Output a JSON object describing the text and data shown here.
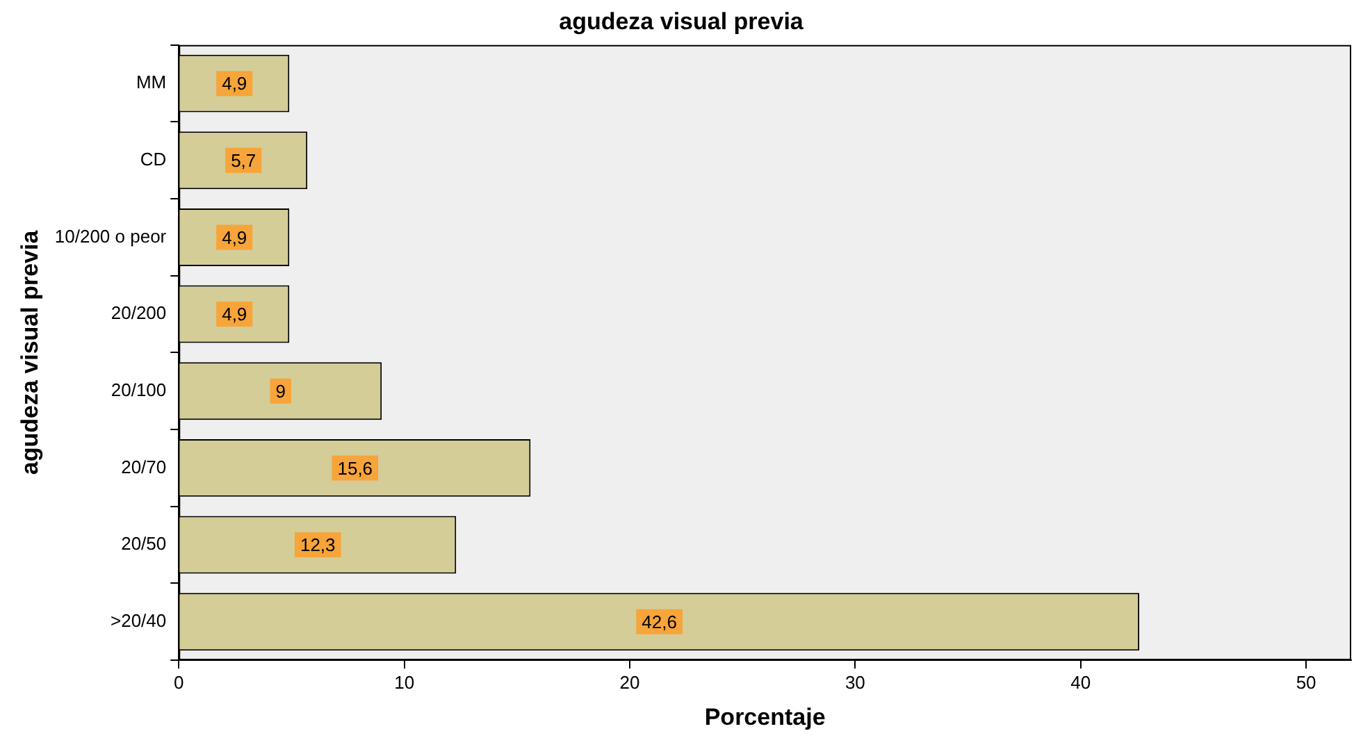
{
  "chart_data": {
    "type": "bar",
    "orientation": "horizontal",
    "title": "agudeza visual previa",
    "xlabel": "Porcentaje",
    "ylabel": "agudeza visual previa",
    "categories": [
      "MM",
      "CD",
      "10/200 o peor",
      "20/200",
      "20/100",
      "20/70",
      "20/50",
      ">20/40"
    ],
    "values": [
      4.9,
      5.7,
      4.9,
      4.9,
      9,
      15.6,
      12.3,
      42.6
    ],
    "color": "#d4cd97",
    "xlim": [
      0,
      52
    ],
    "xticks": [
      0,
      10,
      20,
      30,
      40,
      50
    ],
    "value_labels": [
      "4,9",
      "5,7",
      "4,9",
      "4,9",
      "9",
      "15,6",
      "12,3",
      "42,6"
    ],
    "grid": false,
    "legend": false
  }
}
